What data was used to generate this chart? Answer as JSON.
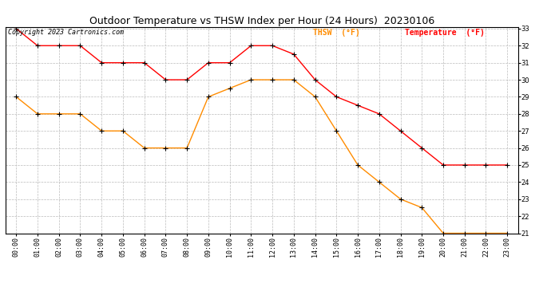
{
  "title": "Outdoor Temperature vs THSW Index per Hour (24 Hours)  20230106",
  "copyright": "Copyright 2023 Cartronics.com",
  "legend_thsw": "THSW  (°F)",
  "legend_temp": "Temperature  (°F)",
  "hours": [
    "00:00",
    "01:00",
    "02:00",
    "03:00",
    "04:00",
    "05:00",
    "06:00",
    "07:00",
    "08:00",
    "09:00",
    "10:00",
    "11:00",
    "12:00",
    "13:00",
    "14:00",
    "15:00",
    "16:00",
    "17:00",
    "18:00",
    "19:00",
    "20:00",
    "21:00",
    "22:00",
    "23:00"
  ],
  "temperature": [
    33.0,
    32.0,
    32.0,
    32.0,
    31.0,
    31.0,
    31.0,
    30.0,
    30.0,
    31.0,
    31.0,
    32.0,
    32.0,
    31.5,
    30.0,
    29.0,
    28.5,
    28.0,
    27.0,
    26.0,
    25.0,
    25.0,
    25.0,
    25.0
  ],
  "thsw": [
    29.0,
    28.0,
    28.0,
    28.0,
    27.0,
    27.0,
    26.0,
    26.0,
    26.0,
    29.0,
    29.5,
    30.0,
    30.0,
    30.0,
    29.0,
    27.0,
    25.0,
    24.0,
    23.0,
    22.5,
    21.0,
    21.0,
    21.0,
    21.0
  ],
  "thsw_color": "#FF8C00",
  "temp_color": "#FF0000",
  "marker_color": "#000000",
  "ylim_min": 21.0,
  "ylim_max": 33.0,
  "ytick_step": 1.0,
  "background_color": "#FFFFFF",
  "grid_color": "#BBBBBB",
  "title_fontsize": 9,
  "label_fontsize": 6,
  "copyright_fontsize": 6,
  "legend_fontsize": 7
}
